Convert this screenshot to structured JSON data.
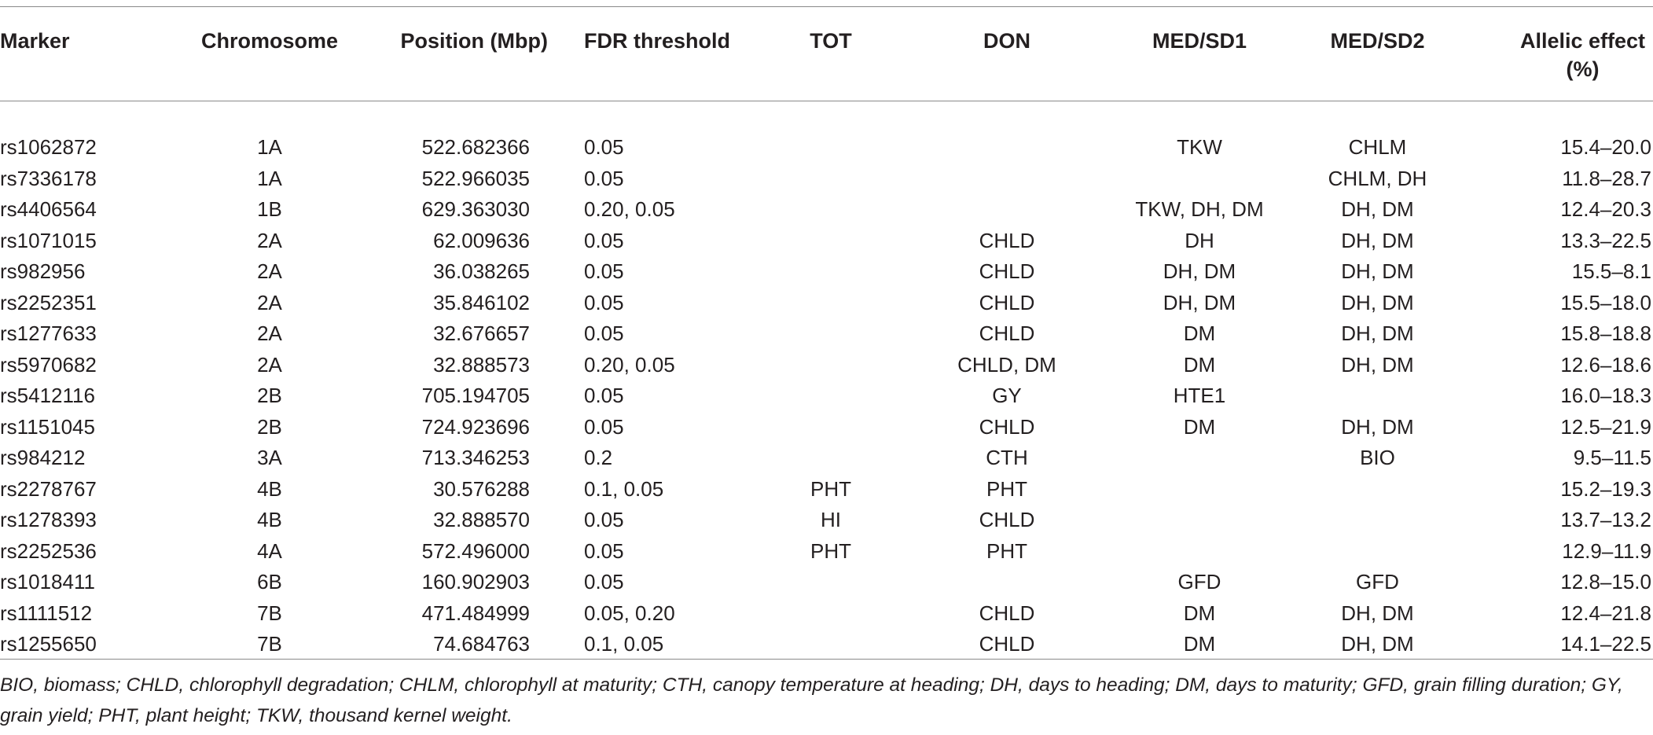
{
  "table": {
    "headers": {
      "marker": "Marker",
      "chromosome": "Chromosome",
      "position": "Position (Mbp)",
      "fdr": "FDR threshold",
      "tot": "TOT",
      "don": "DON",
      "medsd1": "MED/SD1",
      "medsd2": "MED/SD2",
      "allelic_line1": "Allelic effect",
      "allelic_line2": "(%)"
    },
    "rows": [
      {
        "marker": "rs1062872",
        "chromosome": "1A",
        "position": "522.682366",
        "fdr": "0.05",
        "tot": "",
        "don": "",
        "medsd1": "TKW",
        "medsd2": "CHLM",
        "allelic": "15.4–20.0"
      },
      {
        "marker": "rs7336178",
        "chromosome": "1A",
        "position": "522.966035",
        "fdr": "0.05",
        "tot": "",
        "don": "",
        "medsd1": "",
        "medsd2": "CHLM, DH",
        "allelic": "11.8–28.7"
      },
      {
        "marker": "rs4406564",
        "chromosome": "1B",
        "position": "629.363030",
        "fdr": "0.20, 0.05",
        "tot": "",
        "don": "",
        "medsd1": "TKW, DH, DM",
        "medsd2": "DH, DM",
        "allelic": "12.4–20.3"
      },
      {
        "marker": "rs1071015",
        "chromosome": "2A",
        "position": "62.009636",
        "fdr": "0.05",
        "tot": "",
        "don": "CHLD",
        "medsd1": "DH",
        "medsd2": "DH, DM",
        "allelic": "13.3–22.5"
      },
      {
        "marker": "rs982956",
        "chromosome": "2A",
        "position": "36.038265",
        "fdr": "0.05",
        "tot": "",
        "don": "CHLD",
        "medsd1": "DH, DM",
        "medsd2": "DH, DM",
        "allelic": "15.5–8.1"
      },
      {
        "marker": "rs2252351",
        "chromosome": "2A",
        "position": "35.846102",
        "fdr": "0.05",
        "tot": "",
        "don": "CHLD",
        "medsd1": "DH, DM",
        "medsd2": "DH, DM",
        "allelic": "15.5–18.0"
      },
      {
        "marker": "rs1277633",
        "chromosome": "2A",
        "position": "32.676657",
        "fdr": "0.05",
        "tot": "",
        "don": "CHLD",
        "medsd1": "DM",
        "medsd2": "DH, DM",
        "allelic": "15.8–18.8"
      },
      {
        "marker": "rs5970682",
        "chromosome": "2A",
        "position": "32.888573",
        "fdr": "0.20, 0.05",
        "tot": "",
        "don": "CHLD, DM",
        "medsd1": "DM",
        "medsd2": "DH, DM",
        "allelic": "12.6–18.6"
      },
      {
        "marker": "rs5412116",
        "chromosome": "2B",
        "position": "705.194705",
        "fdr": "0.05",
        "tot": "",
        "don": "GY",
        "medsd1": "HTE1",
        "medsd2": "",
        "allelic": "16.0–18.3"
      },
      {
        "marker": "rs1151045",
        "chromosome": "2B",
        "position": "724.923696",
        "fdr": "0.05",
        "tot": "",
        "don": "CHLD",
        "medsd1": "DM",
        "medsd2": "DH, DM",
        "allelic": "12.5–21.9"
      },
      {
        "marker": "rs984212",
        "chromosome": "3A",
        "position": "713.346253",
        "fdr": "0.2",
        "tot": "",
        "don": "CTH",
        "medsd1": "",
        "medsd2": "BIO",
        "allelic": "9.5–11.5"
      },
      {
        "marker": "rs2278767",
        "chromosome": "4B",
        "position": "30.576288",
        "fdr": "0.1, 0.05",
        "tot": "PHT",
        "don": "PHT",
        "medsd1": "",
        "medsd2": "",
        "allelic": "15.2–19.3"
      },
      {
        "marker": "rs1278393",
        "chromosome": "4B",
        "position": "32.888570",
        "fdr": "0.05",
        "tot": "HI",
        "don": "CHLD",
        "medsd1": "",
        "medsd2": "",
        "allelic": "13.7–13.2"
      },
      {
        "marker": "rs2252536",
        "chromosome": "4A",
        "position": "572.496000",
        "fdr": "0.05",
        "tot": "PHT",
        "don": "PHT",
        "medsd1": "",
        "medsd2": "",
        "allelic": "12.9–11.9"
      },
      {
        "marker": "rs1018411",
        "chromosome": "6B",
        "position": "160.902903",
        "fdr": "0.05",
        "tot": "",
        "don": "",
        "medsd1": "GFD",
        "medsd2": "GFD",
        "allelic": "12.8–15.0"
      },
      {
        "marker": "rs1111512",
        "chromosome": "7B",
        "position": "471.484999",
        "fdr": "0.05, 0.20",
        "tot": "",
        "don": "CHLD",
        "medsd1": "DM",
        "medsd2": "DH, DM",
        "allelic": "12.4–21.8"
      },
      {
        "marker": "rs1255650",
        "chromosome": "7B",
        "position": "74.684763",
        "fdr": "0.1, 0.05",
        "tot": "",
        "don": "CHLD",
        "medsd1": "DM",
        "medsd2": "DH, DM",
        "allelic": "14.1–22.5"
      }
    ]
  },
  "footnote": "BIO, biomass; CHLD, chlorophyll degradation; CHLM, chlorophyll at maturity; CTH, canopy temperature at heading; DH, days to heading; DM, days to maturity; GFD, grain filling duration; GY, grain yield; PHT, plant height; TKW, thousand kernel weight."
}
